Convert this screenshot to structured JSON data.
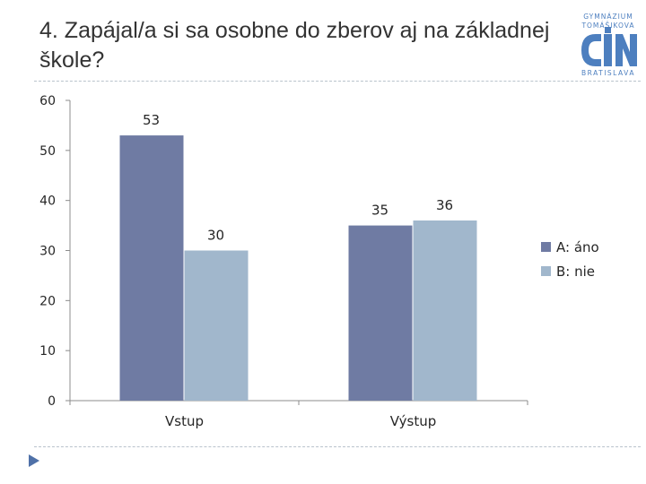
{
  "slide": {
    "title": "4. Zapájal/a si sa osobne do zberov aj na základnej škole?"
  },
  "logo": {
    "line1": "GYMNÁZIUM",
    "line2": "TOMÁŠIKOVA",
    "line3": "BRATISLAVA",
    "color": "#4d7fbf"
  },
  "chart_data": {
    "type": "bar",
    "categories": [
      "Vstup",
      "Výstup"
    ],
    "series": [
      {
        "name": "A: áno",
        "values": [
          53,
          35
        ],
        "color": "#6f7ba3"
      },
      {
        "name": "B: nie",
        "values": [
          30,
          36
        ],
        "color": "#a1b7cc"
      }
    ],
    "title": "",
    "xlabel": "",
    "ylabel": "",
    "ylim": [
      0,
      60
    ],
    "yticks": [
      0,
      10,
      20,
      30,
      40,
      50,
      60
    ],
    "grid": false,
    "legend": "right",
    "data_labels": true
  }
}
